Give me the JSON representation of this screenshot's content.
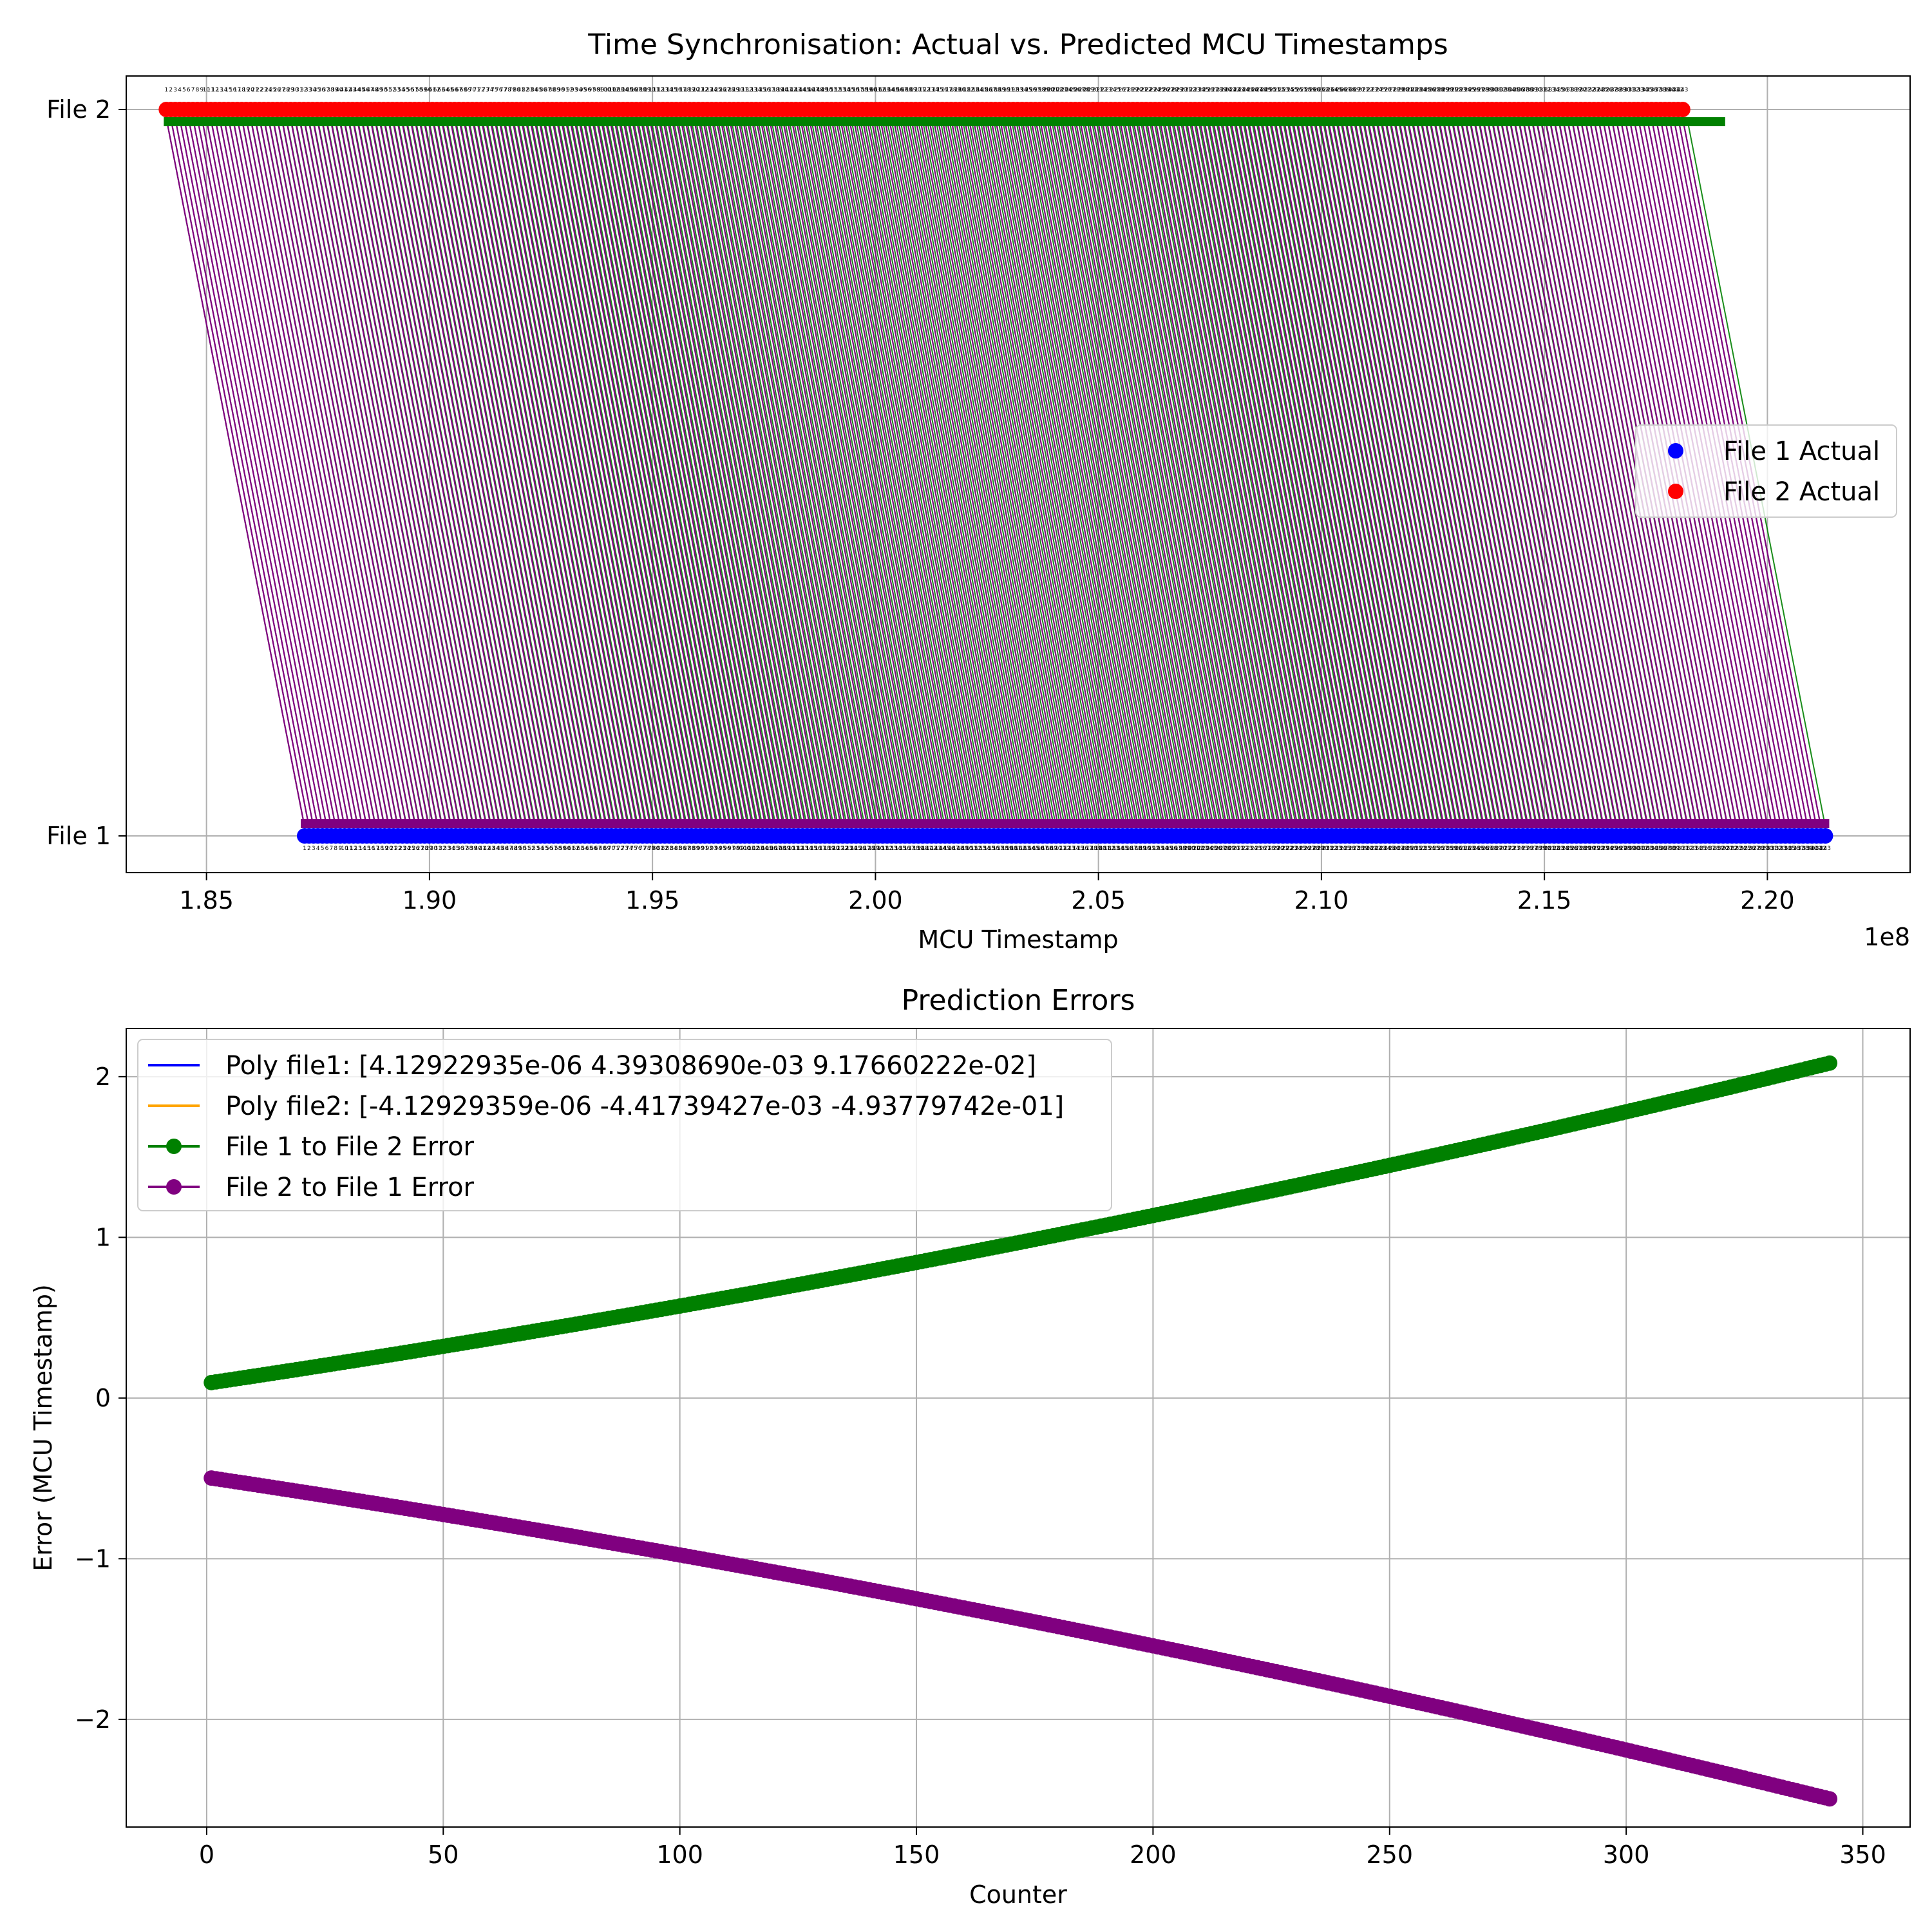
{
  "chart_data": [
    {
      "type": "scatter",
      "title": "Time Synchronisation: Actual vs. Predicted MCU Timestamps",
      "xlabel": "MCU Timestamp",
      "ylabel": "",
      "x_offset_label": "1e8",
      "xlim": [
        1.832,
        2.232
      ],
      "xticks": [
        1.85,
        1.9,
        1.95,
        2.0,
        2.05,
        2.1,
        2.15,
        2.2
      ],
      "xtick_labels": [
        "1.85",
        "1.90",
        "1.95",
        "2.00",
        "2.05",
        "2.10",
        "2.15",
        "2.20"
      ],
      "ytick_labels": [
        "File 1",
        "File 2"
      ],
      "grid": true,
      "legend_position": "center-right",
      "n_points": 343,
      "series": [
        {
          "name": "File 1 Actual",
          "color": "#0000ff",
          "y": "File 1",
          "x_range": [
            1.872,
            2.213
          ]
        },
        {
          "name": "File 2 Actual",
          "color": "#ff0000",
          "y": "File 2",
          "x_range": [
            1.841,
            2.181
          ]
        }
      ],
      "arrows": [
        {
          "color": "#800080",
          "from": "File 2",
          "to": "File 1",
          "x_shift": 0.031
        },
        {
          "color": "#008000",
          "from": "File 1",
          "to": "File 2",
          "x_shift": -0.031
        }
      ]
    },
    {
      "type": "scatter",
      "title": "Prediction Errors",
      "xlabel": "Counter",
      "ylabel": "Error (MCU Timestamp)",
      "xlim": [
        -17,
        360
      ],
      "ylim": [
        -2.67,
        2.3
      ],
      "xticks": [
        0,
        50,
        100,
        150,
        200,
        250,
        300,
        350
      ],
      "yticks": [
        -2,
        -1,
        0,
        1,
        2
      ],
      "ytick_labels": [
        "−2",
        "−1",
        "0",
        "1",
        "2"
      ],
      "grid": true,
      "legend_position": "top-left",
      "n_points": 343,
      "series": [
        {
          "name": "Poly file1: [4.12922935e-06 4.39308690e-03 9.17660222e-02]",
          "color": "#0000ff",
          "values": []
        },
        {
          "name": "Poly file2: [-4.12929359e-06 -4.41739427e-03 -4.93779742e-01]",
          "color": "#ffa500",
          "values": []
        },
        {
          "name": "File 1 to File 2 Error",
          "color": "#008000",
          "x_range": [
            1,
            343
          ],
          "poly": [
            4.12922935e-06,
            0.0043930869,
            0.0917660222
          ]
        },
        {
          "name": "File 2 to File 1 Error",
          "color": "#800080",
          "x_range": [
            1,
            343
          ],
          "poly": [
            -4.12929359e-06,
            -0.00441739427,
            -0.493779742
          ]
        }
      ]
    }
  ]
}
